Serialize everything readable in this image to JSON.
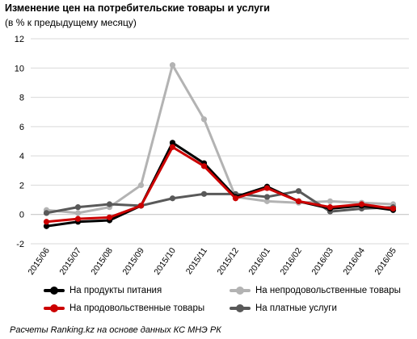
{
  "page": {
    "title": "Изменение цен на потребительские товары и услуги",
    "subtitle": "(в % к предыдущему месяцу)",
    "source": "Расчеты Ranking.kz на основе данных КС МНЭ РК"
  },
  "chart_data": {
    "type": "line",
    "title": "Изменение цен на потребительские товары и услуги",
    "subtitle": "(в % к предыдущему месяцу)",
    "xlabel": "",
    "ylabel": "",
    "x": [
      "2015/06",
      "2015/07",
      "2015/08",
      "2015/09",
      "2015/10",
      "2015/11",
      "2015/12",
      "2016/01",
      "2016/02",
      "2016/03",
      "2016/04",
      "2016/05"
    ],
    "ylim": [
      -2,
      12
    ],
    "yticks": [
      -2,
      0,
      2,
      4,
      6,
      8,
      10,
      12
    ],
    "grid": "horizontal",
    "legend_position": "bottom",
    "series": [
      {
        "name": "На непродовольственные товары",
        "color": "#b3b3b3",
        "values": [
          0.3,
          0.1,
          0.5,
          2.0,
          10.2,
          6.5,
          1.2,
          0.9,
          0.8,
          0.9,
          0.8,
          0.7
        ]
      },
      {
        "name": "На платные услуги",
        "color": "#595959",
        "values": [
          0.1,
          0.5,
          0.7,
          0.6,
          1.1,
          1.4,
          1.4,
          1.2,
          1.6,
          0.2,
          0.4,
          0.5
        ]
      },
      {
        "name": "На продукты питания",
        "color": "#000000",
        "values": [
          -0.8,
          -0.5,
          -0.4,
          0.6,
          4.9,
          3.5,
          1.2,
          1.9,
          0.9,
          0.4,
          0.6,
          0.3
        ]
      },
      {
        "name": "На продовольственные товары",
        "color": "#cc0000",
        "values": [
          -0.5,
          -0.3,
          -0.2,
          0.6,
          4.6,
          3.3,
          1.1,
          1.8,
          0.9,
          0.5,
          0.7,
          0.4
        ]
      }
    ]
  },
  "legend": {
    "items": [
      {
        "label": "На продукты питания",
        "color": "#000000"
      },
      {
        "label": "На непродовольственные товары",
        "color": "#b3b3b3"
      },
      {
        "label": "На продовольственные товары",
        "color": "#cc0000"
      },
      {
        "label": "На платные услуги",
        "color": "#595959"
      }
    ]
  }
}
